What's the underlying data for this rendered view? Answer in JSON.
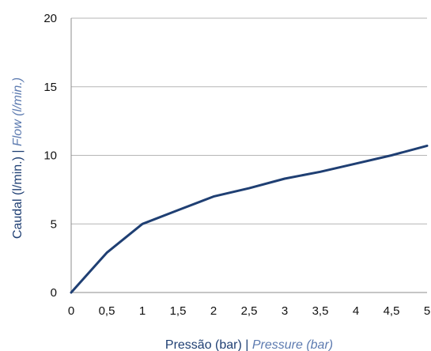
{
  "chart_data": {
    "type": "line",
    "xlabel": {
      "main": "Pressão (bar)",
      "separator": " | ",
      "sub": "Pressure (bar)"
    },
    "ylabel": {
      "main": "Caudal (l/min.)",
      "separator": " | ",
      "sub": "Flow (l/min.)"
    },
    "x_tick_labels": [
      "0",
      "0,5",
      "1",
      "1,5",
      "2",
      "2,5",
      "3",
      "3,5",
      "4",
      "4,5",
      "5"
    ],
    "y_tick_labels": [
      "0",
      "5",
      "10",
      "15",
      "20"
    ],
    "xlim": [
      0,
      5
    ],
    "ylim": [
      0,
      20
    ],
    "x_ticks": [
      0,
      0.5,
      1,
      1.5,
      2,
      2.5,
      3,
      3.5,
      4,
      4.5,
      5
    ],
    "y_ticks": [
      0,
      5,
      10,
      15,
      20
    ],
    "grid": {
      "horizontal": true,
      "vertical": false
    },
    "series": [
      {
        "color": "#1f3f73",
        "x": [
          0,
          0.5,
          1,
          1.5,
          2,
          2.5,
          3,
          3.5,
          4,
          4.5,
          5
        ],
        "y": [
          0,
          2.9,
          5.0,
          6.0,
          7.0,
          7.6,
          8.3,
          8.8,
          9.4,
          10.0,
          10.7
        ]
      }
    ],
    "colors": {
      "grid": "#b5b5b5",
      "axis": "#8c8c8c",
      "title_main": "#1f3f73",
      "title_sub": "#5d7bb0"
    }
  }
}
